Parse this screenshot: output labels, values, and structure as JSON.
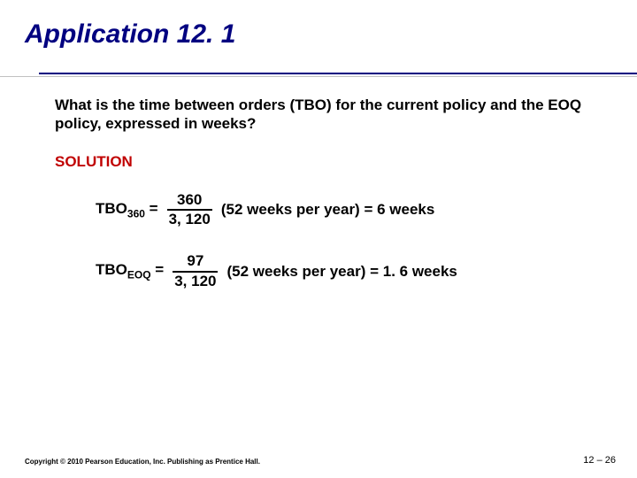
{
  "title": "Application 12. 1",
  "question": "What is the time between orders (TBO) for the current policy and the EOQ policy, expressed in weeks?",
  "solution_label": "SOLUTION",
  "equations": [
    {
      "lhs_prefix": "TBO",
      "lhs_sub": "360",
      "lhs_suffix": " = ",
      "numerator": "360",
      "denominator": "3, 120",
      "rhs": "(52 weeks per year) = 6 weeks"
    },
    {
      "lhs_prefix": "TBO",
      "lhs_sub": "EOQ",
      "lhs_suffix": " = ",
      "numerator": "97",
      "denominator": "3, 120",
      "rhs": "(52 weeks per year) = 1. 6 weeks"
    }
  ],
  "copyright": "Copyright © 2010 Pearson Education, Inc. Publishing as Prentice Hall.",
  "page_number": "12 – 26",
  "colors": {
    "title": "#000080",
    "solution": "#c00000",
    "rule": "#000080",
    "text": "#000000",
    "background": "#ffffff"
  }
}
